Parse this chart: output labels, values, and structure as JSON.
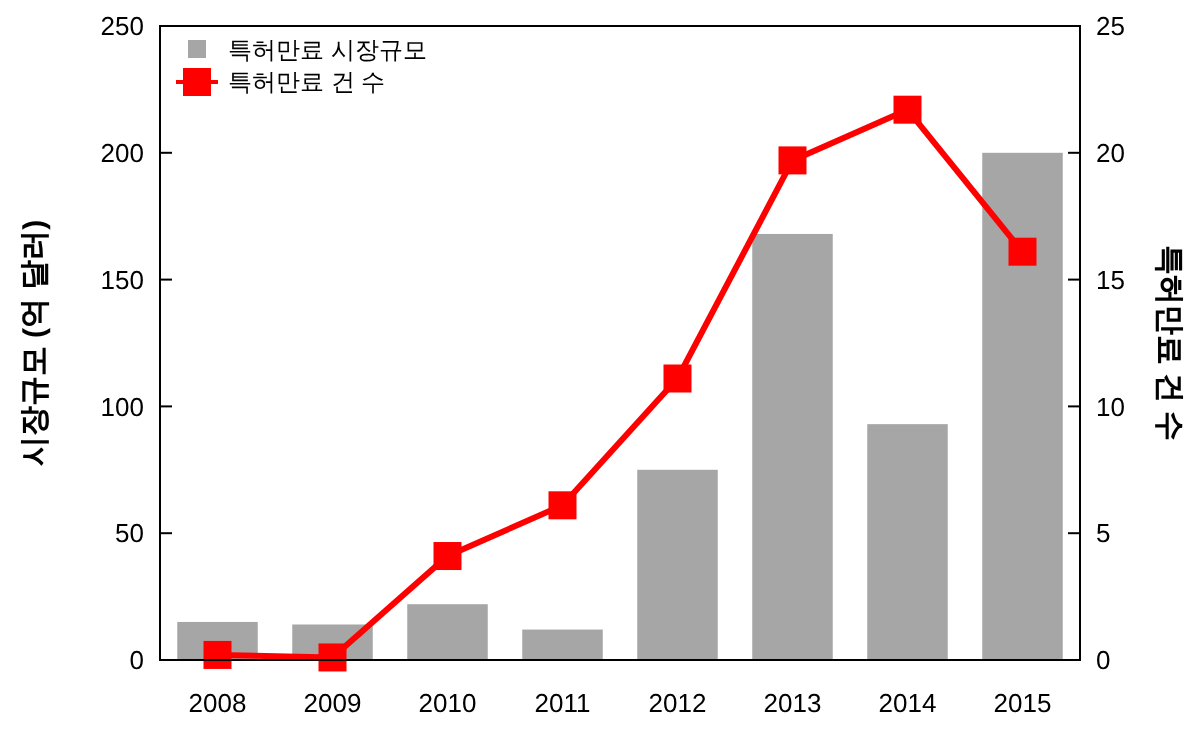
{
  "chart_data": {
    "type": "bar",
    "categories": [
      "2008",
      "2009",
      "2010",
      "2011",
      "2012",
      "2013",
      "2014",
      "2015"
    ],
    "ylabel": "시장규모 (억 달러)",
    "y2label": "특허만료 건 수",
    "ylim": [
      0,
      250
    ],
    "yticks": [
      0,
      50,
      100,
      150,
      200,
      250
    ],
    "y2lim": [
      0,
      25
    ],
    "y2ticks": [
      0,
      5,
      10,
      15,
      20,
      25
    ],
    "legend": "top left",
    "grid": false,
    "series": [
      {
        "name": "특허만료 시장규모",
        "color": "#a6a6a6",
        "values": [
          15,
          14,
          22,
          12,
          75,
          168,
          93,
          200
        ]
      },
      {
        "name": "특허만료 건 수",
        "type": "line",
        "axis": "y2",
        "color": "#ff0000",
        "marker": "square",
        "values": [
          0.2,
          0.1,
          4.1,
          6.1,
          11.1,
          19.7,
          21.7,
          16.1
        ]
      }
    ]
  }
}
